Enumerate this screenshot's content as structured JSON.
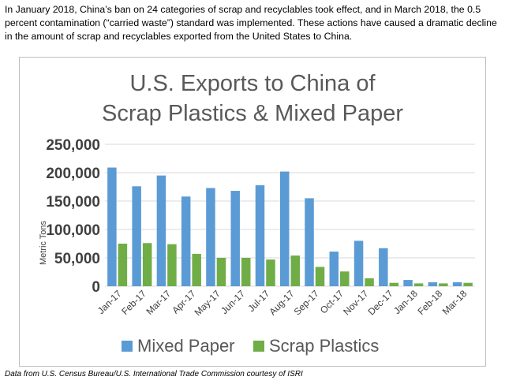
{
  "intro_text": "In January 2018, China’s ban on 24 categories of scrap and recyclables took effect, and in March 2018, the 0.5 percent contamination (“carried waste”) standard was implemented.  These actions have caused a dramatic decline in the amount of scrap and recyclables exported from the United States to China.",
  "source_note": "Data from U.S. Census Bureau/U.S. International Trade Commission courtesy of ISRI",
  "colors": {
    "mixed_paper": "#5b9bd5",
    "scrap_plastics": "#70ad47",
    "grid": "#d9d9d9",
    "axis_text": "#404040",
    "title": "#595959"
  },
  "chart_data": {
    "type": "bar",
    "title_line1": "U.S. Exports to China of",
    "title_line2": "Scrap Plastics & Mixed Paper",
    "ylabel": "Metric Tons",
    "xlabel": "",
    "ylim": [
      0,
      250000
    ],
    "yticks": [
      "0",
      "50,000",
      "100,000",
      "150,000",
      "200,000",
      "250,000"
    ],
    "grid": true,
    "legend_position": "bottom",
    "categories": [
      "Jan-17",
      "Feb-17",
      "Mar-17",
      "Apr-17",
      "May-17",
      "Jun-17",
      "Jul-17",
      "Aug-17",
      "Sep-17",
      "Oct-17",
      "Nov-17",
      "Dec-17",
      "Jan-18",
      "Feb-18",
      "Mar-18"
    ],
    "series": [
      {
        "name": "Mixed Paper",
        "values": [
          209000,
          176000,
          195000,
          158000,
          173000,
          168000,
          178000,
          202000,
          155000,
          61000,
          80000,
          67000,
          11000,
          7000,
          7000
        ]
      },
      {
        "name": "Scrap Plastics",
        "values": [
          75000,
          76000,
          74000,
          57000,
          50000,
          50000,
          47000,
          54000,
          34000,
          26000,
          14000,
          6000,
          5000,
          5000,
          6000
        ]
      }
    ]
  }
}
